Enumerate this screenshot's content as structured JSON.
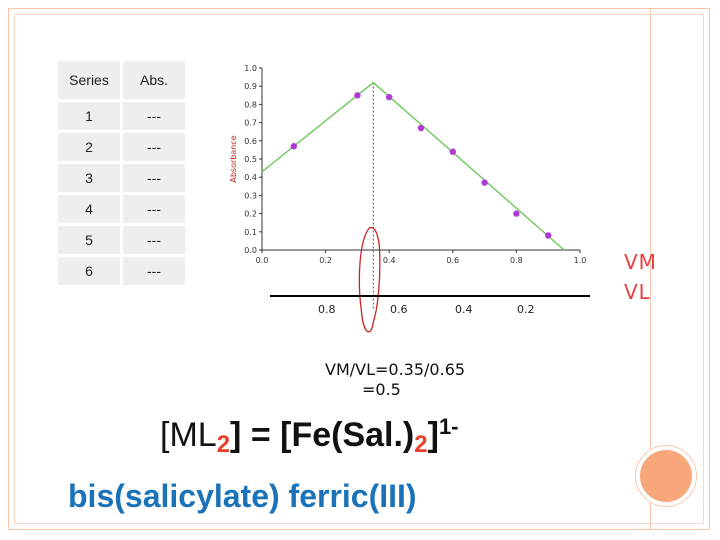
{
  "table": {
    "headers": [
      "Series",
      "Abs."
    ],
    "rows": [
      {
        "series": "1",
        "abs": "---"
      },
      {
        "series": "2",
        "abs": "---"
      },
      {
        "series": "3",
        "abs": "---"
      },
      {
        "series": "4",
        "abs": "---"
      },
      {
        "series": "5",
        "abs": "---"
      },
      {
        "series": "6",
        "abs": "---"
      }
    ]
  },
  "chart_data": {
    "type": "scatter",
    "ylabel": "Absorbance",
    "xlim": [
      0.0,
      1.0
    ],
    "ylim": [
      0.0,
      1.0
    ],
    "x_ticks": [
      "0.0",
      "0.2",
      "0.4",
      "0.6",
      "0.8",
      "1.0"
    ],
    "y_ticks": [
      "0.0",
      "0.1",
      "0.2",
      "0.3",
      "0.4",
      "0.5",
      "0.6",
      "0.7",
      "0.8",
      "0.9",
      "1.0"
    ],
    "points": [
      {
        "x": 0.1,
        "y": 0.57
      },
      {
        "x": 0.3,
        "y": 0.85
      },
      {
        "x": 0.4,
        "y": 0.84
      },
      {
        "x": 0.5,
        "y": 0.67
      },
      {
        "x": 0.6,
        "y": 0.54
      },
      {
        "x": 0.7,
        "y": 0.37
      },
      {
        "x": 0.8,
        "y": 0.2
      },
      {
        "x": 0.9,
        "y": 0.08
      }
    ],
    "fit_lines": [
      {
        "from": [
          0.0,
          0.43
        ],
        "to": [
          0.35,
          0.92
        ]
      },
      {
        "from": [
          0.35,
          0.92
        ],
        "to": [
          0.95,
          0.0
        ]
      }
    ],
    "intersection_x": 0.35,
    "marker_color": "#b03ad6",
    "line_color": "#6cc85c",
    "annotation_color": "#cc2222"
  },
  "scale2": {
    "labels": [
      "0.8",
      "0.6",
      "0.4",
      "0.2"
    ]
  },
  "side_labels": {
    "top": "VM",
    "bottom": "VL"
  },
  "ratio": {
    "line1": "VM/VL=0.35/0.65",
    "line2": "=0.5"
  },
  "formula": {
    "open": "[ML",
    "sub1": "2",
    "mid": "] = [Fe(Sal.)",
    "sub2": "2",
    "close": "]",
    "sup": "1-"
  },
  "name": "bis(salicylate) ferric(III)"
}
